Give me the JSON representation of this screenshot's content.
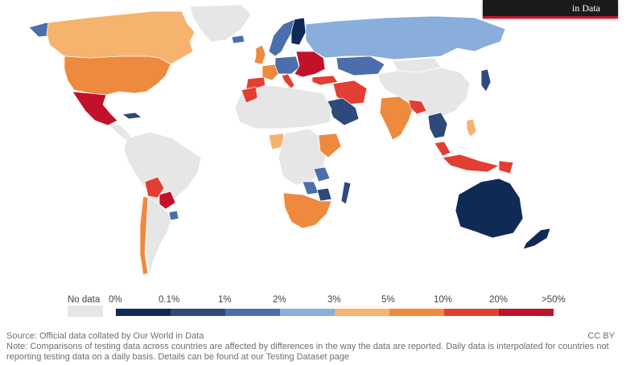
{
  "header": {
    "badge_text": "in Data"
  },
  "legend": {
    "no_data_label": "No data",
    "no_data_color": "#e6e6e6",
    "bins": [
      {
        "label": "0%",
        "color": "#102a56"
      },
      {
        "label": "0.1%",
        "color": "#2e4a7a"
      },
      {
        "label": "1%",
        "color": "#4c6eac"
      },
      {
        "label": "2%",
        "color": "#8aaedb"
      },
      {
        "label": "3%",
        "color": "#f6b36e"
      },
      {
        "label": "5%",
        "color": "#ee8a3e"
      },
      {
        "label": "10%",
        "color": "#e33e32"
      },
      {
        "label": "20%",
        "color": "#c1122a"
      },
      {
        "label": ">50%",
        "color": ""
      }
    ]
  },
  "map": {
    "ocean_color": "#ffffff",
    "regions": [
      {
        "name": "Canada",
        "color": "#f6b36e"
      },
      {
        "name": "Greenland",
        "color": "#e6e6e6"
      },
      {
        "name": "Alaska",
        "color": "#4c6eac"
      },
      {
        "name": "United States",
        "color": "#ee8a3e"
      },
      {
        "name": "Mexico",
        "color": "#c1122a"
      },
      {
        "name": "Central America",
        "color": "#e6e6e6"
      },
      {
        "name": "Cuba",
        "color": "#2e4a7a"
      },
      {
        "name": "South America",
        "color": "#e6e6e6"
      },
      {
        "name": "Bolivia",
        "color": "#e33e32"
      },
      {
        "name": "Paraguay",
        "color": "#c1122a"
      },
      {
        "name": "Chile",
        "color": "#ee8a3e"
      },
      {
        "name": "Argentina",
        "color": "#e6e6e6"
      },
      {
        "name": "Uruguay",
        "color": "#4c6eac"
      },
      {
        "name": "Iceland",
        "color": "#4c6eac"
      },
      {
        "name": "Scandinavia",
        "color": "#4c6eac"
      },
      {
        "name": "Finland",
        "color": "#102a56"
      },
      {
        "name": "United Kingdom",
        "color": "#ee8a3e"
      },
      {
        "name": "Spain",
        "color": "#e33e32"
      },
      {
        "name": "France",
        "color": "#ee8a3e"
      },
      {
        "name": "Central Europe",
        "color": "#4c6eac"
      },
      {
        "name": "Italy",
        "color": "#e33e32"
      },
      {
        "name": "Eastern Europe",
        "color": "#c1122a"
      },
      {
        "name": "Russia",
        "color": "#8aaedb"
      },
      {
        "name": "Kazakhstan",
        "color": "#4c6eac"
      },
      {
        "name": "Turkey",
        "color": "#e33e32"
      },
      {
        "name": "Saudi Arabia",
        "color": "#2e4a7a"
      },
      {
        "name": "Iran",
        "color": "#e33e32"
      },
      {
        "name": "Mongolia",
        "color": "#e6e6e6"
      },
      {
        "name": "China",
        "color": "#e6e6e6"
      },
      {
        "name": "Japan",
        "color": "#2e4a7a"
      },
      {
        "name": "India",
        "color": "#ee8a3e"
      },
      {
        "name": "Bangladesh",
        "color": "#e33e32"
      },
      {
        "name": "Southeast Asia",
        "color": "#2e4a7a"
      },
      {
        "name": "Philippines",
        "color": "#f6b36e"
      },
      {
        "name": "Malaysia",
        "color": "#e33e32"
      },
      {
        "name": "Indonesia",
        "color": "#e33e32"
      },
      {
        "name": "Papua New Guinea",
        "color": "#e33e32"
      },
      {
        "name": "Australia",
        "color": "#102a56"
      },
      {
        "name": "New Zealand",
        "color": "#102a56"
      },
      {
        "name": "North Africa",
        "color": "#e6e6e6"
      },
      {
        "name": "Morocco",
        "color": "#e33e32"
      },
      {
        "name": "Ghana",
        "color": "#f6b36e"
      },
      {
        "name": "Ethiopia",
        "color": "#ee8a3e"
      },
      {
        "name": "Kenya",
        "color": "#4c6eac"
      },
      {
        "name": "Central Africa",
        "color": "#e6e6e6"
      },
      {
        "name": "Zambia",
        "color": "#4c6eac"
      },
      {
        "name": "Zimbabwe",
        "color": "#2e4a7a"
      },
      {
        "name": "Southern Africa",
        "color": "#ee8a3e"
      },
      {
        "name": "Madagascar",
        "color": "#2e4a7a"
      }
    ]
  },
  "footer": {
    "source": "Source: Official data collated by Our World in Data",
    "note": "Note: Comparisons of testing data across countries are affected by differences in the way the data are reported. Daily data is interpolated for countries not reporting testing data on a daily basis. Details can be found at our Testing Dataset page",
    "license": "CC BY"
  }
}
